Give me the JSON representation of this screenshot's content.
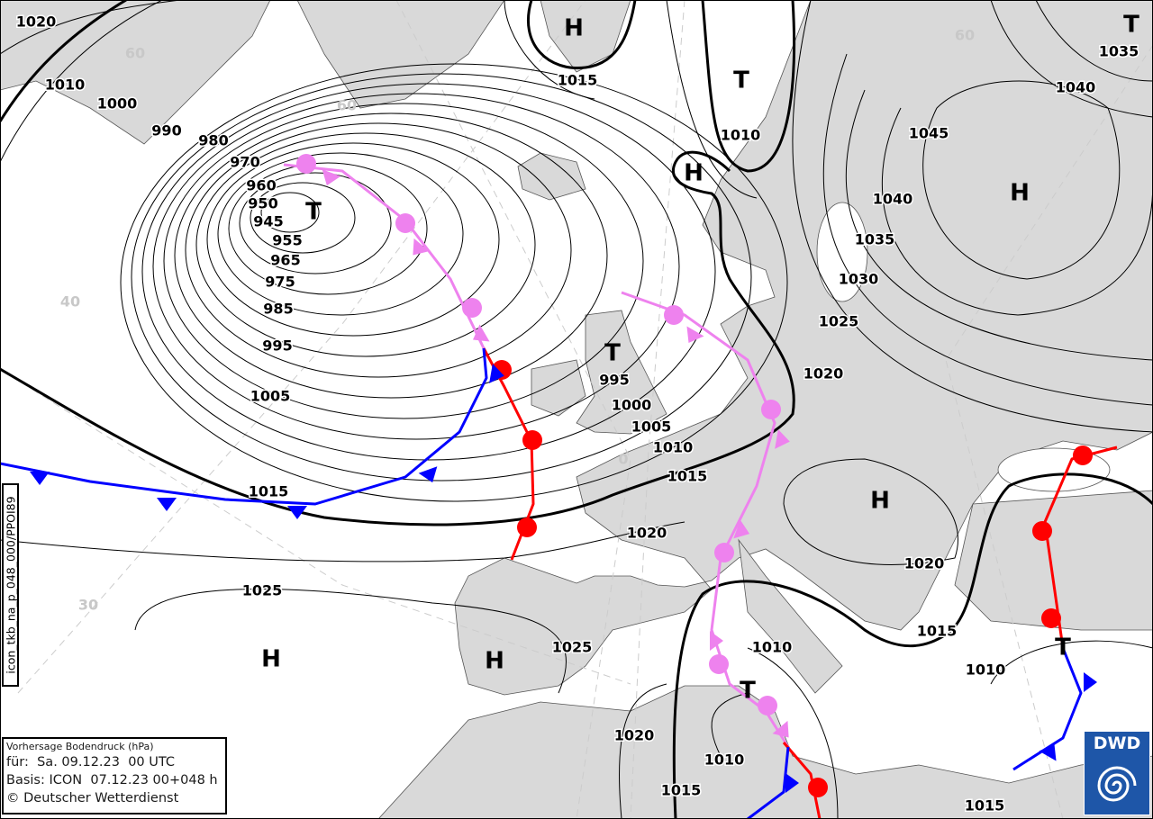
{
  "info": {
    "title": "Vorhersage Bodendruck (hPa)",
    "valid_for": "für:  Sa. 09.12.23  00 UTC",
    "basis": "Basis: ICON  07.12.23 00+048 h",
    "copyright": "© Deutscher Wetterdienst"
  },
  "product_id": "icon_tkb_na_p_048_000/PPOI89",
  "logo_text": "DWD",
  "colors": {
    "land": "#d9d9d9",
    "sea": "#ffffff",
    "warm_front": "#ff0000",
    "cold_front": "#0000ff",
    "occlusion": "#ee82ee",
    "logo": "#1e56a8"
  },
  "pressure_centers": [
    "T",
    "T",
    "T",
    "T",
    "T",
    "T",
    "H",
    "H",
    "H",
    "H",
    "H",
    "H"
  ],
  "isobar_labels": [
    "1020",
    "1010",
    "1000",
    "990",
    "980",
    "970",
    "960",
    "950",
    "945",
    "955",
    "965",
    "975",
    "985",
    "995",
    "1005",
    "1015",
    "1025",
    "1025",
    "1020",
    "1020",
    "1010",
    "1015",
    "1010",
    "1015",
    "1010",
    "1005",
    "1000",
    "995",
    "1015",
    "1010",
    "1035",
    "1040",
    "1045",
    "1040",
    "1035",
    "1030",
    "1025",
    "1020",
    "1020",
    "1015",
    "1010",
    "1015"
  ],
  "latitude_labels": [
    "60",
    "60",
    "40",
    "30",
    "0",
    "60"
  ]
}
